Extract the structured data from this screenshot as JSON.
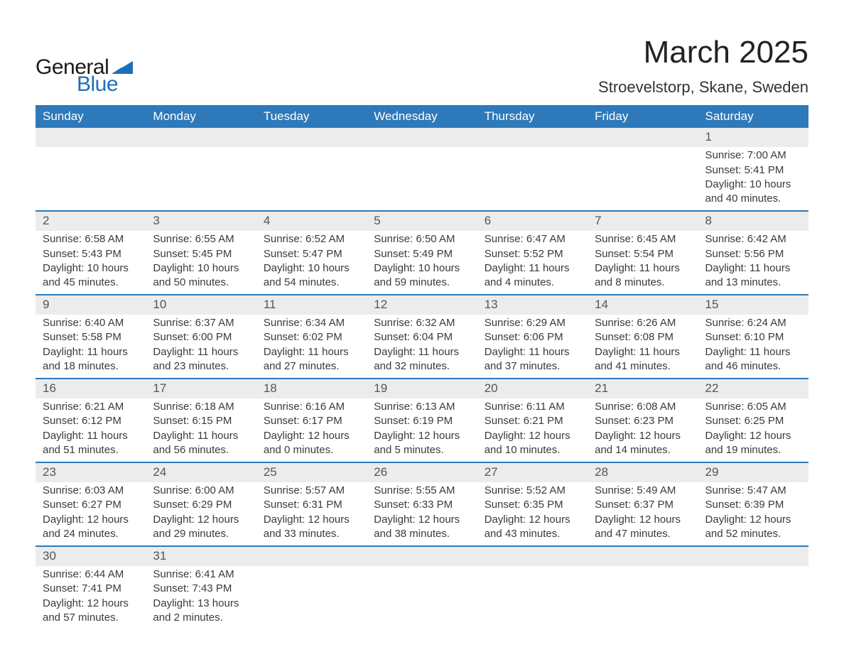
{
  "brand": {
    "general": "General",
    "blue": "Blue",
    "accent_color": "#1d6fb8"
  },
  "title": "March 2025",
  "location": "Stroevelstorp, Skane, Sweden",
  "colors": {
    "header_bg": "#2d79b9",
    "header_text": "#ffffff",
    "daynum_bg": "#ececec",
    "row_border": "#2d79b9",
    "body_text": "#3a3a3a"
  },
  "weekdays": [
    "Sunday",
    "Monday",
    "Tuesday",
    "Wednesday",
    "Thursday",
    "Friday",
    "Saturday"
  ],
  "weeks": [
    [
      null,
      null,
      null,
      null,
      null,
      null,
      {
        "n": "1",
        "sr": "Sunrise: 7:00 AM",
        "ss": "Sunset: 5:41 PM",
        "d1": "Daylight: 10 hours",
        "d2": "and 40 minutes."
      }
    ],
    [
      {
        "n": "2",
        "sr": "Sunrise: 6:58 AM",
        "ss": "Sunset: 5:43 PM",
        "d1": "Daylight: 10 hours",
        "d2": "and 45 minutes."
      },
      {
        "n": "3",
        "sr": "Sunrise: 6:55 AM",
        "ss": "Sunset: 5:45 PM",
        "d1": "Daylight: 10 hours",
        "d2": "and 50 minutes."
      },
      {
        "n": "4",
        "sr": "Sunrise: 6:52 AM",
        "ss": "Sunset: 5:47 PM",
        "d1": "Daylight: 10 hours",
        "d2": "and 54 minutes."
      },
      {
        "n": "5",
        "sr": "Sunrise: 6:50 AM",
        "ss": "Sunset: 5:49 PM",
        "d1": "Daylight: 10 hours",
        "d2": "and 59 minutes."
      },
      {
        "n": "6",
        "sr": "Sunrise: 6:47 AM",
        "ss": "Sunset: 5:52 PM",
        "d1": "Daylight: 11 hours",
        "d2": "and 4 minutes."
      },
      {
        "n": "7",
        "sr": "Sunrise: 6:45 AM",
        "ss": "Sunset: 5:54 PM",
        "d1": "Daylight: 11 hours",
        "d2": "and 8 minutes."
      },
      {
        "n": "8",
        "sr": "Sunrise: 6:42 AM",
        "ss": "Sunset: 5:56 PM",
        "d1": "Daylight: 11 hours",
        "d2": "and 13 minutes."
      }
    ],
    [
      {
        "n": "9",
        "sr": "Sunrise: 6:40 AM",
        "ss": "Sunset: 5:58 PM",
        "d1": "Daylight: 11 hours",
        "d2": "and 18 minutes."
      },
      {
        "n": "10",
        "sr": "Sunrise: 6:37 AM",
        "ss": "Sunset: 6:00 PM",
        "d1": "Daylight: 11 hours",
        "d2": "and 23 minutes."
      },
      {
        "n": "11",
        "sr": "Sunrise: 6:34 AM",
        "ss": "Sunset: 6:02 PM",
        "d1": "Daylight: 11 hours",
        "d2": "and 27 minutes."
      },
      {
        "n": "12",
        "sr": "Sunrise: 6:32 AM",
        "ss": "Sunset: 6:04 PM",
        "d1": "Daylight: 11 hours",
        "d2": "and 32 minutes."
      },
      {
        "n": "13",
        "sr": "Sunrise: 6:29 AM",
        "ss": "Sunset: 6:06 PM",
        "d1": "Daylight: 11 hours",
        "d2": "and 37 minutes."
      },
      {
        "n": "14",
        "sr": "Sunrise: 6:26 AM",
        "ss": "Sunset: 6:08 PM",
        "d1": "Daylight: 11 hours",
        "d2": "and 41 minutes."
      },
      {
        "n": "15",
        "sr": "Sunrise: 6:24 AM",
        "ss": "Sunset: 6:10 PM",
        "d1": "Daylight: 11 hours",
        "d2": "and 46 minutes."
      }
    ],
    [
      {
        "n": "16",
        "sr": "Sunrise: 6:21 AM",
        "ss": "Sunset: 6:12 PM",
        "d1": "Daylight: 11 hours",
        "d2": "and 51 minutes."
      },
      {
        "n": "17",
        "sr": "Sunrise: 6:18 AM",
        "ss": "Sunset: 6:15 PM",
        "d1": "Daylight: 11 hours",
        "d2": "and 56 minutes."
      },
      {
        "n": "18",
        "sr": "Sunrise: 6:16 AM",
        "ss": "Sunset: 6:17 PM",
        "d1": "Daylight: 12 hours",
        "d2": "and 0 minutes."
      },
      {
        "n": "19",
        "sr": "Sunrise: 6:13 AM",
        "ss": "Sunset: 6:19 PM",
        "d1": "Daylight: 12 hours",
        "d2": "and 5 minutes."
      },
      {
        "n": "20",
        "sr": "Sunrise: 6:11 AM",
        "ss": "Sunset: 6:21 PM",
        "d1": "Daylight: 12 hours",
        "d2": "and 10 minutes."
      },
      {
        "n": "21",
        "sr": "Sunrise: 6:08 AM",
        "ss": "Sunset: 6:23 PM",
        "d1": "Daylight: 12 hours",
        "d2": "and 14 minutes."
      },
      {
        "n": "22",
        "sr": "Sunrise: 6:05 AM",
        "ss": "Sunset: 6:25 PM",
        "d1": "Daylight: 12 hours",
        "d2": "and 19 minutes."
      }
    ],
    [
      {
        "n": "23",
        "sr": "Sunrise: 6:03 AM",
        "ss": "Sunset: 6:27 PM",
        "d1": "Daylight: 12 hours",
        "d2": "and 24 minutes."
      },
      {
        "n": "24",
        "sr": "Sunrise: 6:00 AM",
        "ss": "Sunset: 6:29 PM",
        "d1": "Daylight: 12 hours",
        "d2": "and 29 minutes."
      },
      {
        "n": "25",
        "sr": "Sunrise: 5:57 AM",
        "ss": "Sunset: 6:31 PM",
        "d1": "Daylight: 12 hours",
        "d2": "and 33 minutes."
      },
      {
        "n": "26",
        "sr": "Sunrise: 5:55 AM",
        "ss": "Sunset: 6:33 PM",
        "d1": "Daylight: 12 hours",
        "d2": "and 38 minutes."
      },
      {
        "n": "27",
        "sr": "Sunrise: 5:52 AM",
        "ss": "Sunset: 6:35 PM",
        "d1": "Daylight: 12 hours",
        "d2": "and 43 minutes."
      },
      {
        "n": "28",
        "sr": "Sunrise: 5:49 AM",
        "ss": "Sunset: 6:37 PM",
        "d1": "Daylight: 12 hours",
        "d2": "and 47 minutes."
      },
      {
        "n": "29",
        "sr": "Sunrise: 5:47 AM",
        "ss": "Sunset: 6:39 PM",
        "d1": "Daylight: 12 hours",
        "d2": "and 52 minutes."
      }
    ],
    [
      {
        "n": "30",
        "sr": "Sunrise: 6:44 AM",
        "ss": "Sunset: 7:41 PM",
        "d1": "Daylight: 12 hours",
        "d2": "and 57 minutes."
      },
      {
        "n": "31",
        "sr": "Sunrise: 6:41 AM",
        "ss": "Sunset: 7:43 PM",
        "d1": "Daylight: 13 hours",
        "d2": "and 2 minutes."
      },
      null,
      null,
      null,
      null,
      null
    ]
  ]
}
